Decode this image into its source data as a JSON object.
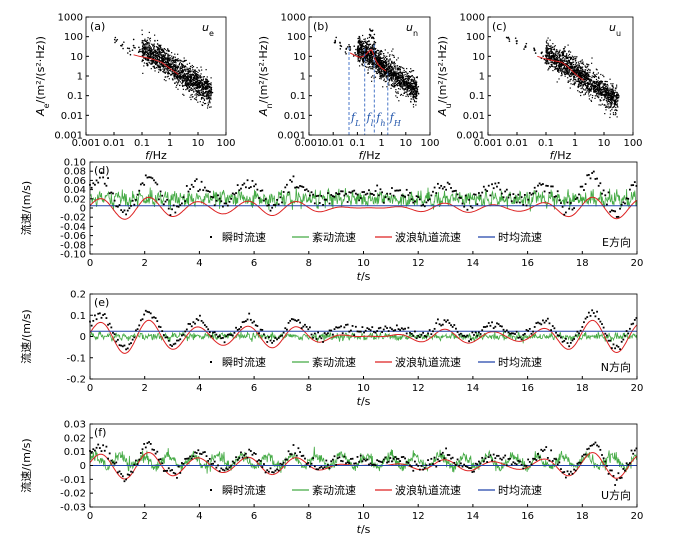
{
  "chart_data": [
    {
      "id": "a",
      "type": "scatter",
      "panel_label": "(a)",
      "component": "u_e",
      "component_label": "u",
      "component_sub": "e",
      "xscale": "log",
      "yscale": "log",
      "xlim": [
        0.001,
        100
      ],
      "ylim": [
        0.001,
        1000
      ],
      "xticks": [
        "0.001",
        "0.01",
        "0.1",
        "1",
        "10",
        "100"
      ],
      "yticks": [
        "0.001",
        "0.01",
        "0.1",
        "1",
        "10",
        "100",
        "1000"
      ],
      "xlabel": "f/Hz",
      "ylabel": "Ae/(m²/(s²·Hz))",
      "x_label_var": "f",
      "x_label_unit": "/Hz",
      "y_label_var": "A",
      "y_label_sub": "e",
      "y_label_unit": "/(m²/(s²·Hz))",
      "series": [
        {
          "color": "#000000",
          "points": [
            [
              0.012,
              60
            ],
            [
              0.02,
              40
            ],
            [
              0.035,
              25
            ],
            [
              0.05,
              35
            ],
            [
              0.08,
              18
            ],
            [
              0.12,
              12
            ],
            [
              0.18,
              9
            ],
            [
              0.25,
              7
            ],
            [
              0.3,
              15
            ],
            [
              0.38,
              25
            ],
            [
              0.45,
              30
            ],
            [
              0.5,
              22
            ],
            [
              0.6,
              10
            ],
            [
              0.8,
              5
            ],
            [
              1.0,
              3.5
            ],
            [
              1.5,
              2
            ],
            [
              2,
              1.3
            ],
            [
              3,
              0.9
            ],
            [
              5,
              0.6
            ],
            [
              8,
              0.4
            ],
            [
              12,
              0.3
            ],
            [
              20,
              0.25
            ],
            [
              30,
              0.2
            ]
          ]
        },
        {
          "color": "#dd2222",
          "points": [
            [
              0.05,
              12
            ],
            [
              0.08,
              10
            ],
            [
              0.12,
              9
            ],
            [
              0.18,
              8
            ],
            [
              0.25,
              7
            ],
            [
              0.35,
              6
            ],
            [
              0.5,
              5
            ],
            [
              0.7,
              3.5
            ],
            [
              1,
              2.4
            ],
            [
              1.5,
              1.6
            ],
            [
              2,
              1.2
            ]
          ]
        }
      ],
      "scatter_cloud": {
        "x_range": [
          0.1,
          30
        ],
        "y_mean_at_1": 3,
        "slope": -0.9,
        "spread": 1.0,
        "n": 1400
      }
    },
    {
      "id": "b",
      "type": "scatter",
      "panel_label": "(b)",
      "component": "u_n",
      "component_label": "u",
      "component_sub": "n",
      "xscale": "log",
      "yscale": "log",
      "xlim": [
        0.001,
        100
      ],
      "ylim": [
        0.001,
        1000
      ],
      "xticks": [
        "0.001",
        "0.01",
        "0.1",
        "1",
        "10",
        "100"
      ],
      "yticks": [
        "0.001",
        "0.01",
        "0.1",
        "1",
        "10",
        "100",
        "1000"
      ],
      "xlabel": "f/Hz",
      "ylabel": "An/(m²/(s²·Hz))",
      "x_label_var": "f",
      "x_label_unit": "/Hz",
      "y_label_var": "A",
      "y_label_sub": "n",
      "y_label_unit": "/(m²/(s²·Hz))",
      "series": [
        {
          "color": "#000000",
          "points": [
            [
              0.012,
              50
            ],
            [
              0.02,
              35
            ],
            [
              0.035,
              25
            ],
            [
              0.05,
              30
            ],
            [
              0.08,
              15
            ],
            [
              0.12,
              10
            ],
            [
              0.18,
              8
            ],
            [
              0.25,
              25
            ],
            [
              0.3,
              60
            ],
            [
              0.35,
              120
            ],
            [
              0.4,
              200
            ],
            [
              0.45,
              90
            ],
            [
              0.5,
              40
            ],
            [
              0.6,
              15
            ],
            [
              0.8,
              6
            ],
            [
              1,
              4
            ],
            [
              1.5,
              2
            ],
            [
              2,
              1.4
            ],
            [
              3,
              0.9
            ],
            [
              5,
              0.6
            ],
            [
              8,
              0.4
            ],
            [
              12,
              0.3
            ],
            [
              20,
              0.25
            ],
            [
              30,
              0.2
            ]
          ]
        },
        {
          "color": "#dd2222",
          "points": [
            [
              0.05,
              15
            ],
            [
              0.08,
              11
            ],
            [
              0.12,
              9
            ],
            [
              0.18,
              10
            ],
            [
              0.25,
              14
            ],
            [
              0.3,
              18
            ],
            [
              0.38,
              22
            ],
            [
              0.45,
              14
            ],
            [
              0.55,
              7
            ],
            [
              0.7,
              4
            ],
            [
              1,
              2.5
            ],
            [
              1.5,
              1.8
            ]
          ]
        }
      ],
      "scatter_cloud": {
        "x_range": [
          0.1,
          30
        ],
        "y_mean_at_1": 3.5,
        "slope": -0.9,
        "spread": 1.0,
        "n": 1400
      },
      "vlines": [
        {
          "x": 0.045,
          "y_top": 30,
          "label_var": "f",
          "label_sub": "L"
        },
        {
          "x": 0.2,
          "y_top": 25,
          "label_var": "f",
          "label_sub": "l"
        },
        {
          "x": 0.5,
          "y_top": 40,
          "label_var": "f",
          "label_sub": "h"
        },
        {
          "x": 1.8,
          "y_top": 1.5,
          "label_var": "f",
          "label_sub": "H"
        }
      ]
    },
    {
      "id": "c",
      "type": "scatter",
      "panel_label": "(c)",
      "component": "u_u",
      "component_label": "u",
      "component_sub": "u",
      "xscale": "log",
      "yscale": "log",
      "xlim": [
        0.001,
        100
      ],
      "ylim": [
        0.001,
        1000
      ],
      "xticks": [
        "0.001",
        "0.01",
        "0.1",
        "1",
        "10",
        "100"
      ],
      "yticks": [
        "0.001",
        "0.01",
        "0.1",
        "1",
        "10",
        "100",
        "1000"
      ],
      "xlabel": "f/Hz",
      "ylabel": "Au/(m²/(s²·Hz))",
      "x_label_var": "f",
      "x_label_unit": "/Hz",
      "y_label_var": "A",
      "y_label_sub": "u",
      "y_label_unit": "/(m²/(s²·Hz))",
      "series": [
        {
          "color": "#000000",
          "points": [
            [
              0.005,
              90
            ],
            [
              0.01,
              60
            ],
            [
              0.02,
              30
            ],
            [
              0.04,
              20
            ],
            [
              0.07,
              15
            ],
            [
              0.1,
              10
            ],
            [
              0.15,
              8
            ],
            [
              0.2,
              7
            ],
            [
              0.3,
              10
            ],
            [
              0.4,
              15
            ],
            [
              0.45,
              18
            ],
            [
              0.55,
              8
            ],
            [
              0.7,
              4
            ],
            [
              1,
              2
            ],
            [
              1.5,
              1
            ],
            [
              2,
              0.7
            ],
            [
              3,
              0.4
            ],
            [
              5,
              0.3
            ],
            [
              8,
              0.2
            ],
            [
              12,
              0.15
            ],
            [
              20,
              0.12
            ],
            [
              30,
              0.1
            ]
          ]
        },
        {
          "color": "#dd2222",
          "points": [
            [
              0.05,
              10
            ],
            [
              0.08,
              8
            ],
            [
              0.12,
              7
            ],
            [
              0.18,
              6
            ],
            [
              0.25,
              5.5
            ],
            [
              0.35,
              5
            ],
            [
              0.5,
              3.5
            ],
            [
              0.7,
              2.2
            ],
            [
              1,
              1.3
            ],
            [
              1.5,
              0.8
            ],
            [
              2,
              0.6
            ]
          ]
        }
      ],
      "scatter_cloud": {
        "x_range": [
          0.1,
          30
        ],
        "y_mean_at_1": 1.5,
        "slope": -1.0,
        "spread": 1.0,
        "n": 1400
      }
    },
    {
      "id": "d",
      "type": "line",
      "panel_label": "(d)",
      "direction_label": "E方向",
      "xlim": [
        0,
        20
      ],
      "ylim": [
        -0.1,
        0.1
      ],
      "xticks": [
        0,
        2,
        4,
        6,
        8,
        10,
        12,
        14,
        16,
        18,
        20
      ],
      "yticks": [
        "0.10",
        "0.08",
        "0.06",
        "0.04",
        "0.02",
        "0",
        "-0.02",
        "-0.04",
        "-0.06",
        "-0.08",
        "-0.10"
      ],
      "ytick_values": [
        0.1,
        0.08,
        0.06,
        0.04,
        0.02,
        0,
        -0.02,
        -0.04,
        -0.06,
        -0.08,
        -0.1
      ],
      "xlabel": "t/s",
      "ylabel": "流速/(m/s)",
      "series": [
        {
          "name": "瞬时流速",
          "color": "#000000",
          "style": "dots",
          "mean": 0.03,
          "amp": 0.035,
          "period": 1.8,
          "noise": 0.008
        },
        {
          "name": "紊动流速",
          "color": "#44aa44",
          "style": "line",
          "mean": 0.02,
          "amp": 0.006,
          "period": 0.3,
          "noise": 0.008
        },
        {
          "name": "波浪轨道流速",
          "color": "#dd2222",
          "style": "line",
          "mean": 0.0,
          "amp": 0.02,
          "period": 1.8,
          "noise": 0.0
        },
        {
          "name": "时均流速",
          "color": "#2244aa",
          "style": "line",
          "mean": 0.005,
          "amp": 0.0,
          "period": 1,
          "noise": 0.0
        }
      ]
    },
    {
      "id": "e",
      "type": "line",
      "panel_label": "(e)",
      "direction_label": "N方向",
      "xlim": [
        0,
        20
      ],
      "ylim": [
        -0.2,
        0.2
      ],
      "xticks": [
        0,
        2,
        4,
        6,
        8,
        10,
        12,
        14,
        16,
        18,
        20
      ],
      "yticks": [
        "0.2",
        "0.1",
        "0",
        "-0.1",
        "-0.2"
      ],
      "ytick_values": [
        0.2,
        0.1,
        0,
        -0.1,
        -0.2
      ],
      "xlabel": "t/s",
      "ylabel": "流速/(m/s)",
      "series": [
        {
          "name": "瞬时流速",
          "color": "#000000",
          "style": "dots",
          "mean": 0.03,
          "amp": 0.07,
          "period": 1.8,
          "noise": 0.01
        },
        {
          "name": "紊动流速",
          "color": "#44aa44",
          "style": "line",
          "mean": 0.0,
          "amp": 0.006,
          "period": 0.3,
          "noise": 0.008
        },
        {
          "name": "波浪轨道流速",
          "color": "#dd2222",
          "style": "line",
          "mean": 0.0,
          "amp": 0.065,
          "period": 1.8,
          "noise": 0.0
        },
        {
          "name": "时均流速",
          "color": "#2244aa",
          "style": "line",
          "mean": 0.025,
          "amp": 0.0,
          "period": 1,
          "noise": 0.0
        }
      ]
    },
    {
      "id": "f",
      "type": "line",
      "panel_label": "(f)",
      "direction_label": "U方向",
      "xlim": [
        0,
        20
      ],
      "ylim": [
        -0.03,
        0.03
      ],
      "xticks": [
        0,
        2,
        4,
        6,
        8,
        10,
        12,
        14,
        16,
        18,
        20
      ],
      "yticks": [
        "0.03",
        "0.02",
        "0.01",
        "0",
        "-0.01",
        "-0.02",
        "-0.03"
      ],
      "ytick_values": [
        0.03,
        0.02,
        0.01,
        0,
        -0.01,
        -0.02,
        -0.03
      ],
      "xlabel": "t/s",
      "ylabel": "流速/(m/s)",
      "series": [
        {
          "name": "瞬时流速",
          "color": "#000000",
          "style": "dots",
          "mean": 0.003,
          "amp": 0.01,
          "period": 1.8,
          "noise": 0.002
        },
        {
          "name": "紊动流速",
          "color": "#44aa44",
          "style": "line",
          "mean": 0.003,
          "amp": 0.004,
          "period": 0.9,
          "noise": 0.002
        },
        {
          "name": "波浪轨道流速",
          "color": "#dd2222",
          "style": "line",
          "mean": 0.0,
          "amp": 0.008,
          "period": 1.8,
          "noise": 0.0
        },
        {
          "name": "时均流速",
          "color": "#2244aa",
          "style": "line",
          "mean": 0.0,
          "amp": 0.0,
          "period": 1,
          "noise": 0.0
        }
      ]
    }
  ]
}
